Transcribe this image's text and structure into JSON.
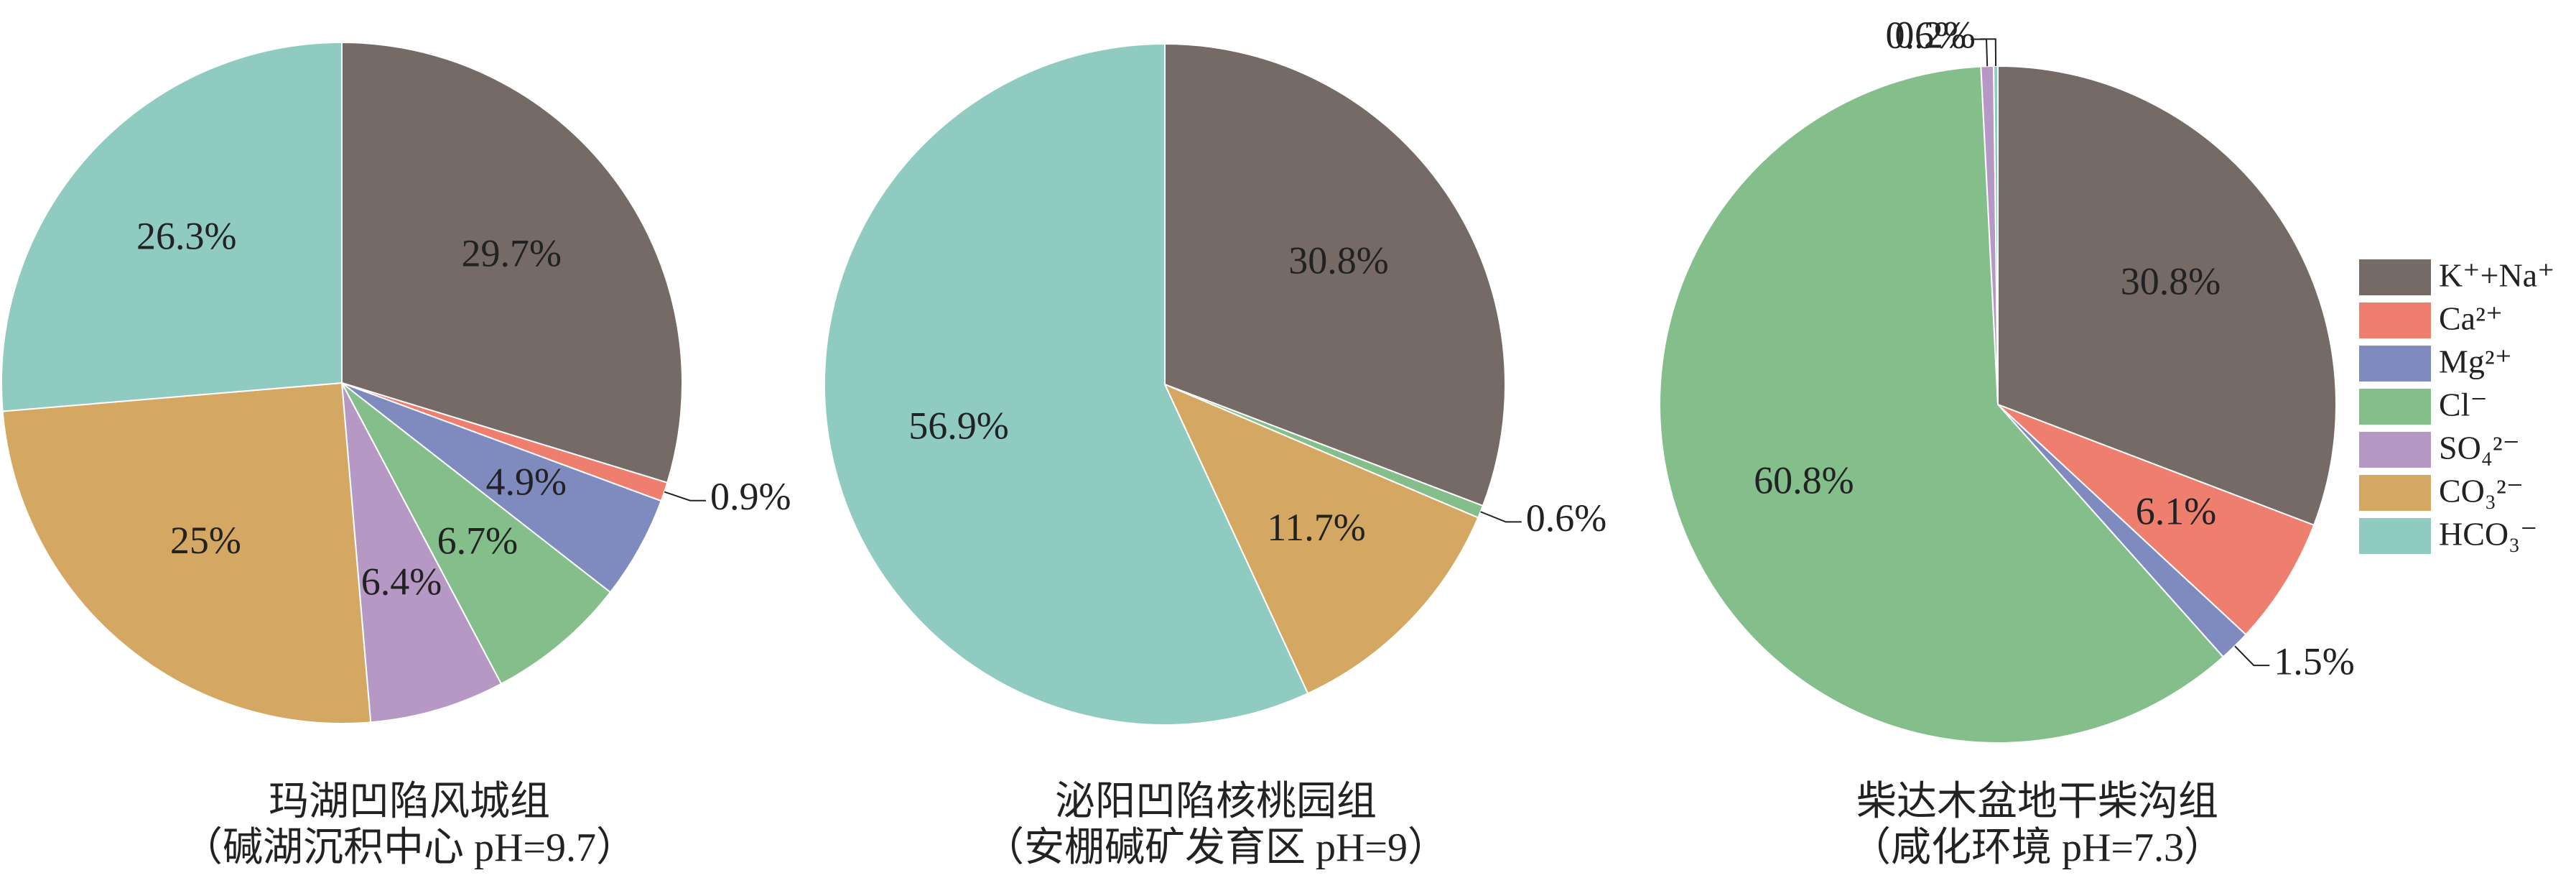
{
  "chart_data": [
    {
      "type": "pie",
      "title": "玛湖凹陷风城组",
      "subtitle": "（碱湖沉积中心 pH=9.7）",
      "categories": [
        "K⁺+Na⁺",
        "Ca²⁺",
        "Mg²⁺",
        "Cl⁻",
        "SO₄²⁻",
        "CO₃²⁻",
        "HCO₃⁻"
      ],
      "values": [
        29.7,
        0.9,
        4.9,
        6.7,
        6.4,
        25,
        26.3
      ],
      "value_labels": [
        "29.7%",
        "0.9%",
        "4.9%",
        "6.7%",
        "6.4%",
        "25%",
        "26.3%"
      ],
      "colors": [
        "#756a65",
        "#ee7f6e",
        "#7f8bbf",
        "#84be8b",
        "#b598c4",
        "#d4a762",
        "#8fcbc1"
      ]
    },
    {
      "type": "pie",
      "title": "泌阳凹陷核桃园组",
      "subtitle": "（安棚碱矿发育区 pH=9）",
      "categories": [
        "K⁺+Na⁺",
        "Cl⁻",
        "CO₃²⁻",
        "HCO₃⁻"
      ],
      "values": [
        30.8,
        0.6,
        11.7,
        56.9
      ],
      "value_labels": [
        "30.8%",
        "0.6%",
        "11.7%",
        "56.9%"
      ],
      "colors": [
        "#756a65",
        "#84be8b",
        "#d4a762",
        "#8fcbc1"
      ]
    },
    {
      "type": "pie",
      "title": "柴达木盆地干柴沟组",
      "subtitle": "（咸化环境 pH=7.3）",
      "categories": [
        "K⁺+Na⁺",
        "Ca²⁺",
        "Mg²⁺",
        "Cl⁻",
        "SO₄²⁻",
        "HCO₃⁻"
      ],
      "values": [
        30.8,
        6.1,
        1.5,
        60.8,
        0.6,
        0.2
      ],
      "value_labels": [
        "30.8%",
        "6.1%",
        "1.5%",
        "60.8%",
        "0.6%",
        "0.2%"
      ],
      "colors": [
        "#756a65",
        "#ee7f6e",
        "#7f8bbf",
        "#84be8b",
        "#b598c4",
        "#8fcbc1"
      ]
    }
  ],
  "legend": {
    "labels": [
      "K⁺+Na⁺",
      "Ca²⁺",
      "Mg²⁺",
      "Cl⁻",
      "SO₄²⁻",
      "CO₃²⁻",
      "HCO₃⁻"
    ],
    "colors": [
      "#756a65",
      "#ee7f6e",
      "#7f8bbf",
      "#84be8b",
      "#b598c4",
      "#d4a762",
      "#8fcbc1"
    ]
  }
}
